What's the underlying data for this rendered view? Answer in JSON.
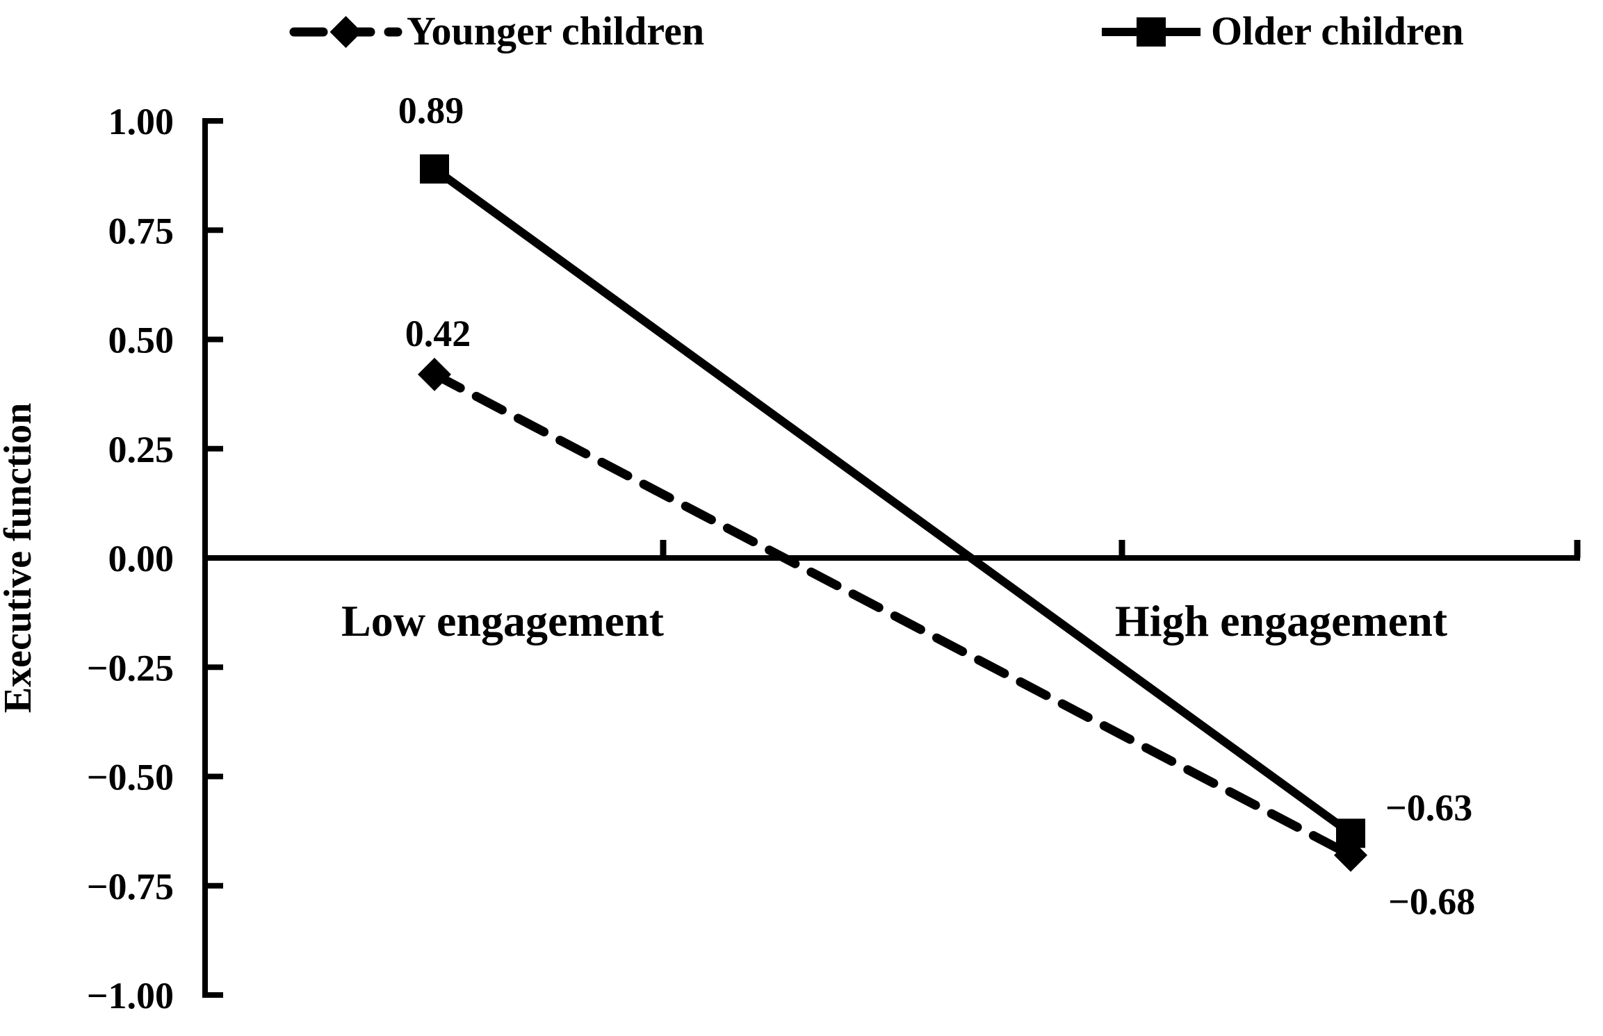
{
  "figure": {
    "background": "#ffffff",
    "ink_color": "#000000"
  },
  "chart_data": {
    "type": "line",
    "title": "",
    "categories": [
      "Low engagement",
      "High engagement"
    ],
    "series": [
      {
        "name": "Younger children",
        "values": [
          0.42,
          -0.68
        ],
        "value_labels": [
          "0.42",
          "−0.68"
        ],
        "marker": "diamond",
        "line_style": "dashed"
      },
      {
        "name": "Older children",
        "values": [
          0.89,
          -0.63
        ],
        "value_labels": [
          "0.89",
          "−0.63"
        ],
        "marker": "square",
        "line_style": "solid"
      }
    ],
    "xlabel": "",
    "ylabel": "Executive function",
    "ylim": [
      -1.0,
      1.0
    ],
    "ytick_values": [
      1.0,
      0.75,
      0.5,
      0.25,
      0.0,
      -0.25,
      -0.5,
      -0.75,
      -1.0
    ],
    "ytick_labels": [
      "1.00",
      "0.75",
      "0.50",
      "0.25",
      "0.00",
      "−0.25",
      "−0.50",
      "−0.75",
      "−1.00"
    ],
    "grid": false,
    "legend_position": "top",
    "series_color": "#000000",
    "axis_color": "#000000"
  }
}
